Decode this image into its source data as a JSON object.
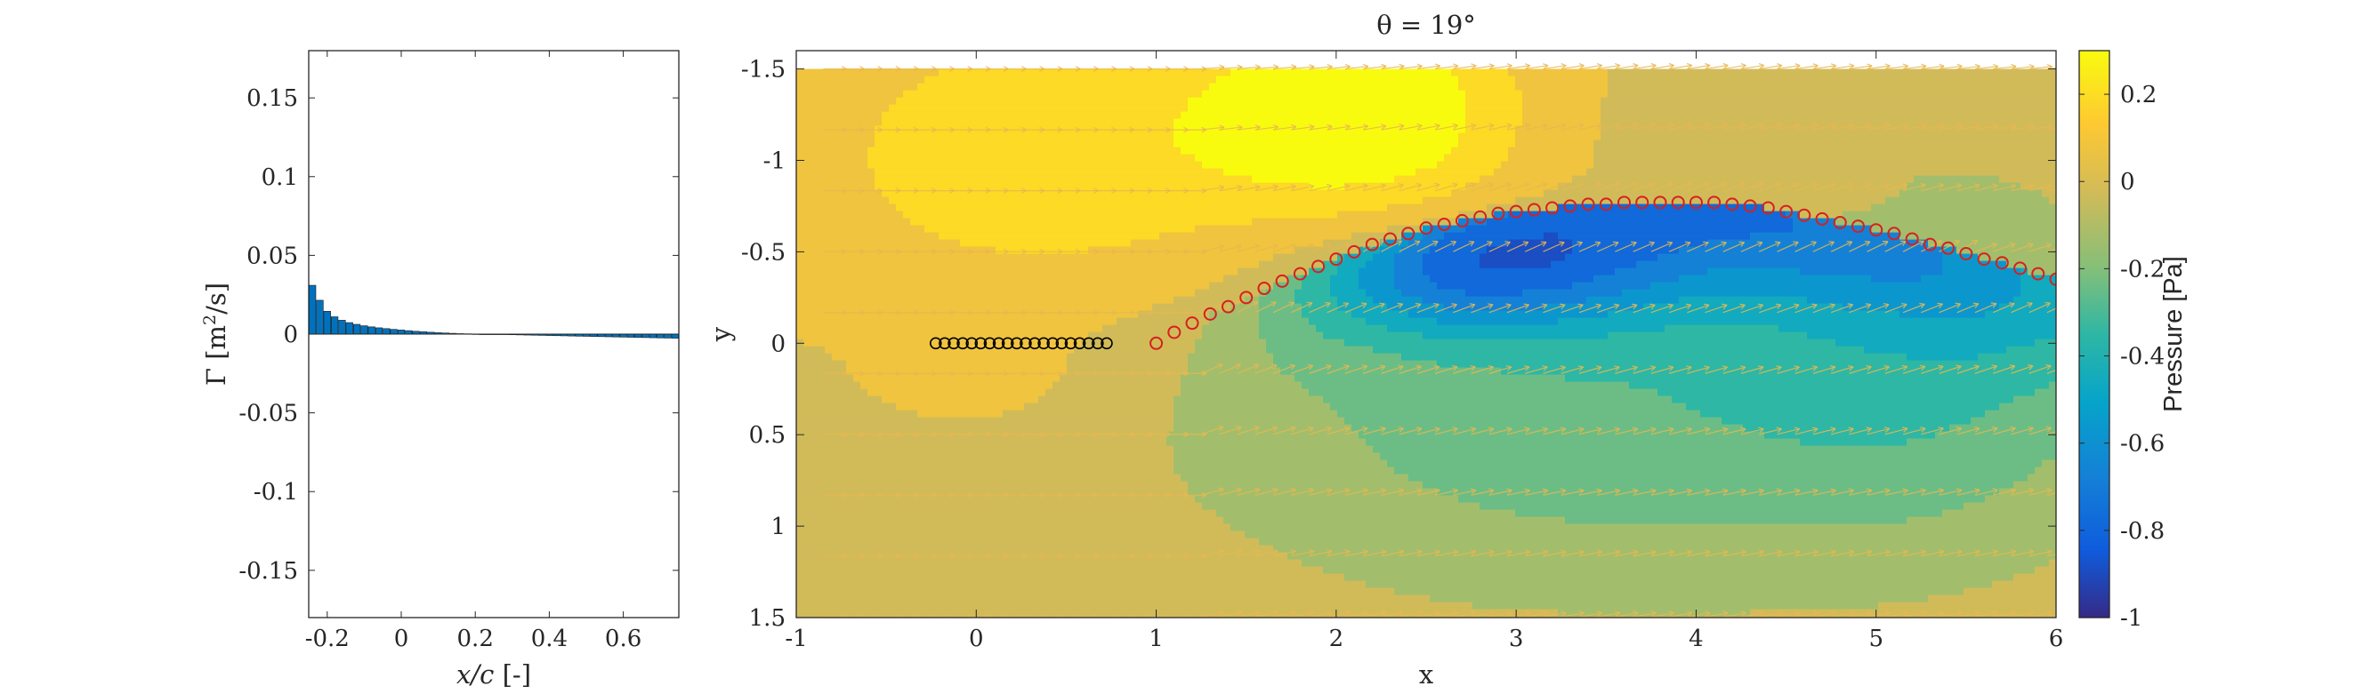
{
  "chart_data": [
    {
      "type": "bar",
      "panel": "left",
      "xlabel": "x/c [-]",
      "ylabel_main": "Γ [m",
      "ylabel_sup": "2",
      "ylabel_tail": "/s]",
      "xlim": [
        -0.25,
        0.75
      ],
      "ylim": [
        -0.18,
        0.18
      ],
      "xticks": [
        "-0.2",
        "0",
        "0.2",
        "0.4",
        "0.6"
      ],
      "xtick_values": [
        -0.2,
        0,
        0.2,
        0.4,
        0.6
      ],
      "yticks": [
        "0.15",
        "0.1",
        "0.05",
        "0",
        "-0.05",
        "-0.1",
        "-0.15"
      ],
      "ytick_values": [
        0.15,
        0.1,
        0.05,
        0,
        -0.05,
        -0.1,
        -0.15
      ],
      "bar_color": "#0072BD",
      "x": [
        -0.24,
        -0.22,
        -0.2,
        -0.18,
        -0.16,
        -0.14,
        -0.12,
        -0.1,
        -0.08,
        -0.06,
        -0.04,
        -0.02,
        0.0,
        0.02,
        0.04,
        0.06,
        0.08,
        0.1,
        0.12,
        0.14,
        0.16,
        0.18,
        0.2,
        0.22,
        0.24,
        0.26,
        0.28,
        0.3,
        0.32,
        0.34,
        0.36,
        0.38,
        0.4,
        0.42,
        0.44,
        0.46,
        0.48,
        0.5,
        0.52,
        0.54,
        0.56,
        0.58,
        0.6,
        0.62,
        0.64,
        0.66,
        0.68,
        0.7,
        0.72,
        0.74
      ],
      "values": [
        0.031,
        0.0215,
        0.0145,
        0.011,
        0.0088,
        0.0073,
        0.0062,
        0.0053,
        0.0046,
        0.004,
        0.0035,
        0.003,
        0.0026,
        0.0022,
        0.0018,
        0.0015,
        0.0012,
        0.0009,
        0.0007,
        0.0005,
        0.0003,
        0.0002,
        0.0001,
        0.0,
        -0.0001,
        -0.0002,
        -0.0003,
        -0.0004,
        -0.0005,
        -0.0006,
        -0.0007,
        -0.0008,
        -0.0009,
        -0.001,
        -0.0011,
        -0.0012,
        -0.0013,
        -0.0014,
        -0.0015,
        -0.0016,
        -0.0017,
        -0.0018,
        -0.0019,
        -0.002,
        -0.0021,
        -0.0022,
        -0.0023,
        -0.0024,
        -0.0025,
        -0.0026
      ]
    },
    {
      "type": "heatmap",
      "panel": "right",
      "title": "θ = 19°",
      "xlabel": "x",
      "ylabel": "y",
      "xlim": [
        -1,
        6
      ],
      "ylim": [
        -1.6,
        1.5
      ],
      "y_direction": "reverse",
      "xticks": [
        "-1",
        "0",
        "1",
        "2",
        "3",
        "4",
        "5",
        "6"
      ],
      "xtick_values": [
        -1,
        0,
        1,
        2,
        3,
        4,
        5,
        6
      ],
      "yticks": [
        "-1.5",
        "-1",
        "-0.5",
        "0",
        "0.5",
        "1",
        "1.5"
      ],
      "ytick_values": [
        -1.5,
        -1,
        -0.5,
        0,
        0.5,
        1,
        1.5
      ],
      "field_extent": {
        "x": [
          -1,
          6
        ],
        "y": [
          -1.5,
          1.5
        ]
      },
      "colorbar": {
        "label": "Pressure [Pa]",
        "range": [
          -1,
          0.3
        ],
        "ticks": [
          "0.2",
          "0",
          "-0.2",
          "-0.4",
          "-0.6",
          "-0.8",
          "-1"
        ],
        "tick_values": [
          0.2,
          0,
          -0.2,
          -0.4,
          -0.6,
          -0.8,
          -1
        ],
        "colormap": "parula"
      },
      "plate_points": {
        "color": "#000000",
        "x": [
          -0.225,
          -0.175,
          -0.125,
          -0.075,
          -0.025,
          0.025,
          0.075,
          0.125,
          0.175,
          0.225,
          0.275,
          0.325,
          0.375,
          0.425,
          0.475,
          0.525,
          0.575,
          0.625,
          0.675,
          0.725
        ],
        "y": [
          0,
          0,
          0,
          0,
          0,
          0,
          0,
          0,
          0,
          0,
          0,
          0,
          0,
          0,
          0,
          0,
          0,
          0,
          0,
          0
        ]
      },
      "wake_points": {
        "color": "#D62020",
        "x": [
          1.0,
          1.1,
          1.2,
          1.3,
          1.4,
          1.5,
          1.6,
          1.7,
          1.8,
          1.9,
          2.0,
          2.1,
          2.2,
          2.3,
          2.4,
          2.5,
          2.6,
          2.7,
          2.8,
          2.9,
          3.0,
          3.1,
          3.2,
          3.3,
          3.4,
          3.5,
          3.6,
          3.7,
          3.8,
          3.9,
          4.0,
          4.1,
          4.2,
          4.3,
          4.4,
          4.5,
          4.6,
          4.7,
          4.8,
          4.9,
          5.0,
          5.1,
          5.2,
          5.3,
          5.4,
          5.5,
          5.6,
          5.7,
          5.8,
          5.9,
          6.0
        ],
        "y": [
          0.0,
          -0.06,
          -0.11,
          -0.16,
          -0.2,
          -0.25,
          -0.3,
          -0.34,
          -0.38,
          -0.42,
          -0.46,
          -0.5,
          -0.54,
          -0.57,
          -0.6,
          -0.63,
          -0.65,
          -0.67,
          -0.69,
          -0.71,
          -0.72,
          -0.73,
          -0.74,
          -0.75,
          -0.76,
          -0.76,
          -0.77,
          -0.77,
          -0.77,
          -0.77,
          -0.77,
          -0.77,
          -0.76,
          -0.75,
          -0.74,
          -0.72,
          -0.7,
          -0.68,
          -0.66,
          -0.64,
          -0.62,
          -0.6,
          -0.57,
          -0.54,
          -0.52,
          -0.49,
          -0.46,
          -0.44,
          -0.41,
          -0.38,
          -0.35
        ]
      },
      "vector_color": "#E8B850"
    }
  ]
}
